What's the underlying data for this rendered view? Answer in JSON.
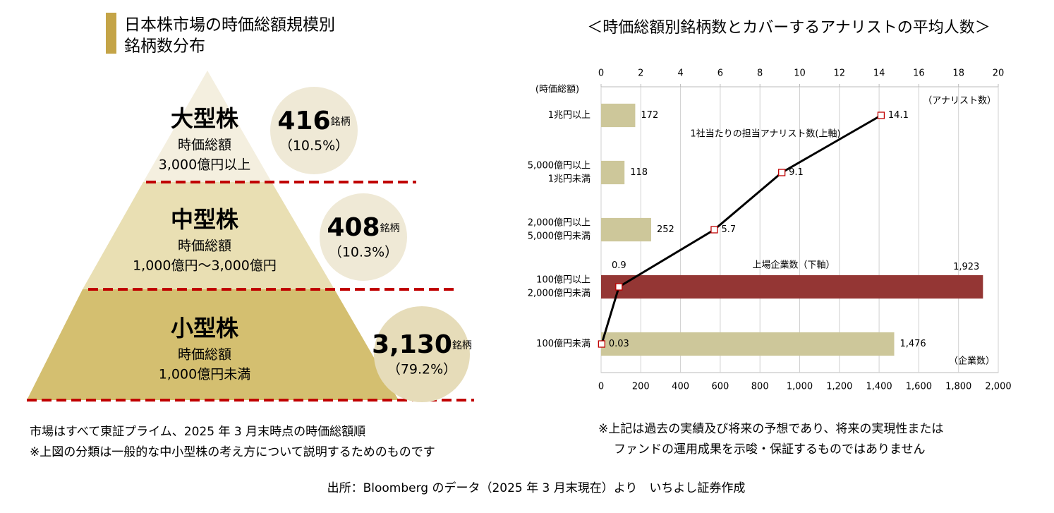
{
  "pyramid": {
    "title": [
      "日本株市場の時価総額規模別",
      "銘柄数分布"
    ],
    "tiers": [
      {
        "name": "大型株",
        "label": "時価総額",
        "range": "3,000億円以上",
        "count": "416",
        "unit": "銘柄",
        "share": "（10.5%）"
      },
      {
        "name": "中型株",
        "label": "時価総額",
        "range": "1,000億円～3,000億円",
        "count": "408",
        "unit": "銘柄",
        "share": "（10.3%）"
      },
      {
        "name": "小型株",
        "label": "時価総額",
        "range": "1,000億円未満",
        "count": "3,130",
        "unit": "銘柄",
        "share": "（79.2%）"
      }
    ],
    "notes": [
      "市場はすべて東証プライム、2025 年 3 月末時点の時価総額順",
      "※上図の分類は一般的な中小型株の考え方について説明するためのものです"
    ]
  },
  "chart_data": {
    "type": "combo",
    "title": "＜時価総額別銘柄数とカバーするアナリストの平均人数＞",
    "category_axis_label": "(時価総額)",
    "x_label": "（企業数）",
    "x2_label": "（アナリスト数）",
    "categories": [
      [
        "1兆円以上"
      ],
      [
        "5,000億円以上",
        "1兆円未満"
      ],
      [
        "2,000億円以上",
        "5,000億円未満"
      ],
      [
        "100億円以上",
        "2,000億円未満"
      ],
      [
        "100億円未満"
      ]
    ],
    "series": [
      {
        "name": "上場企業数（下軸）",
        "kind": "bar",
        "colors": [
          "#cdc79a",
          "#cdc79a",
          "#cdc79a",
          "#943634",
          "#cdc79a"
        ],
        "values": [
          172,
          118,
          252,
          1923,
          1476
        ],
        "value_labels": [
          "172",
          "118",
          "252",
          "1,923",
          "1,476"
        ]
      },
      {
        "name": "1社当たりの担当アナリスト数(上軸)",
        "kind": "line",
        "axis": "x2",
        "color": "#000000",
        "marker_color": "#c00000",
        "values": [
          14.1,
          9.1,
          5.7,
          0.9,
          0.03
        ]
      }
    ],
    "xlim": [
      0,
      2000
    ],
    "xticks": [
      0,
      200,
      400,
      600,
      800,
      {
        "value": 1000,
        "label": "1,000"
      },
      {
        "value": 1200,
        "label": "1,200"
      },
      {
        "value": 1400,
        "label": "1,400"
      },
      {
        "value": 1600,
        "label": "1,600"
      },
      {
        "value": 1800,
        "label": "1,800"
      },
      {
        "value": 2000,
        "label": "2,000"
      }
    ],
    "x2lim": [
      0,
      20
    ],
    "x2ticks": [
      0,
      2,
      4,
      6,
      8,
      10,
      12,
      14,
      16,
      18,
      20
    ],
    "grid": true,
    "notes": [
      "※上記は過去の実績及び将来の予想であり、将来の実現性または",
      "ファンドの運用成果を示唆・保証するものではありません"
    ]
  },
  "source": "出所：Bloomberg のデータ（2025 年 3 月末現在）より　いちよし証券作成"
}
